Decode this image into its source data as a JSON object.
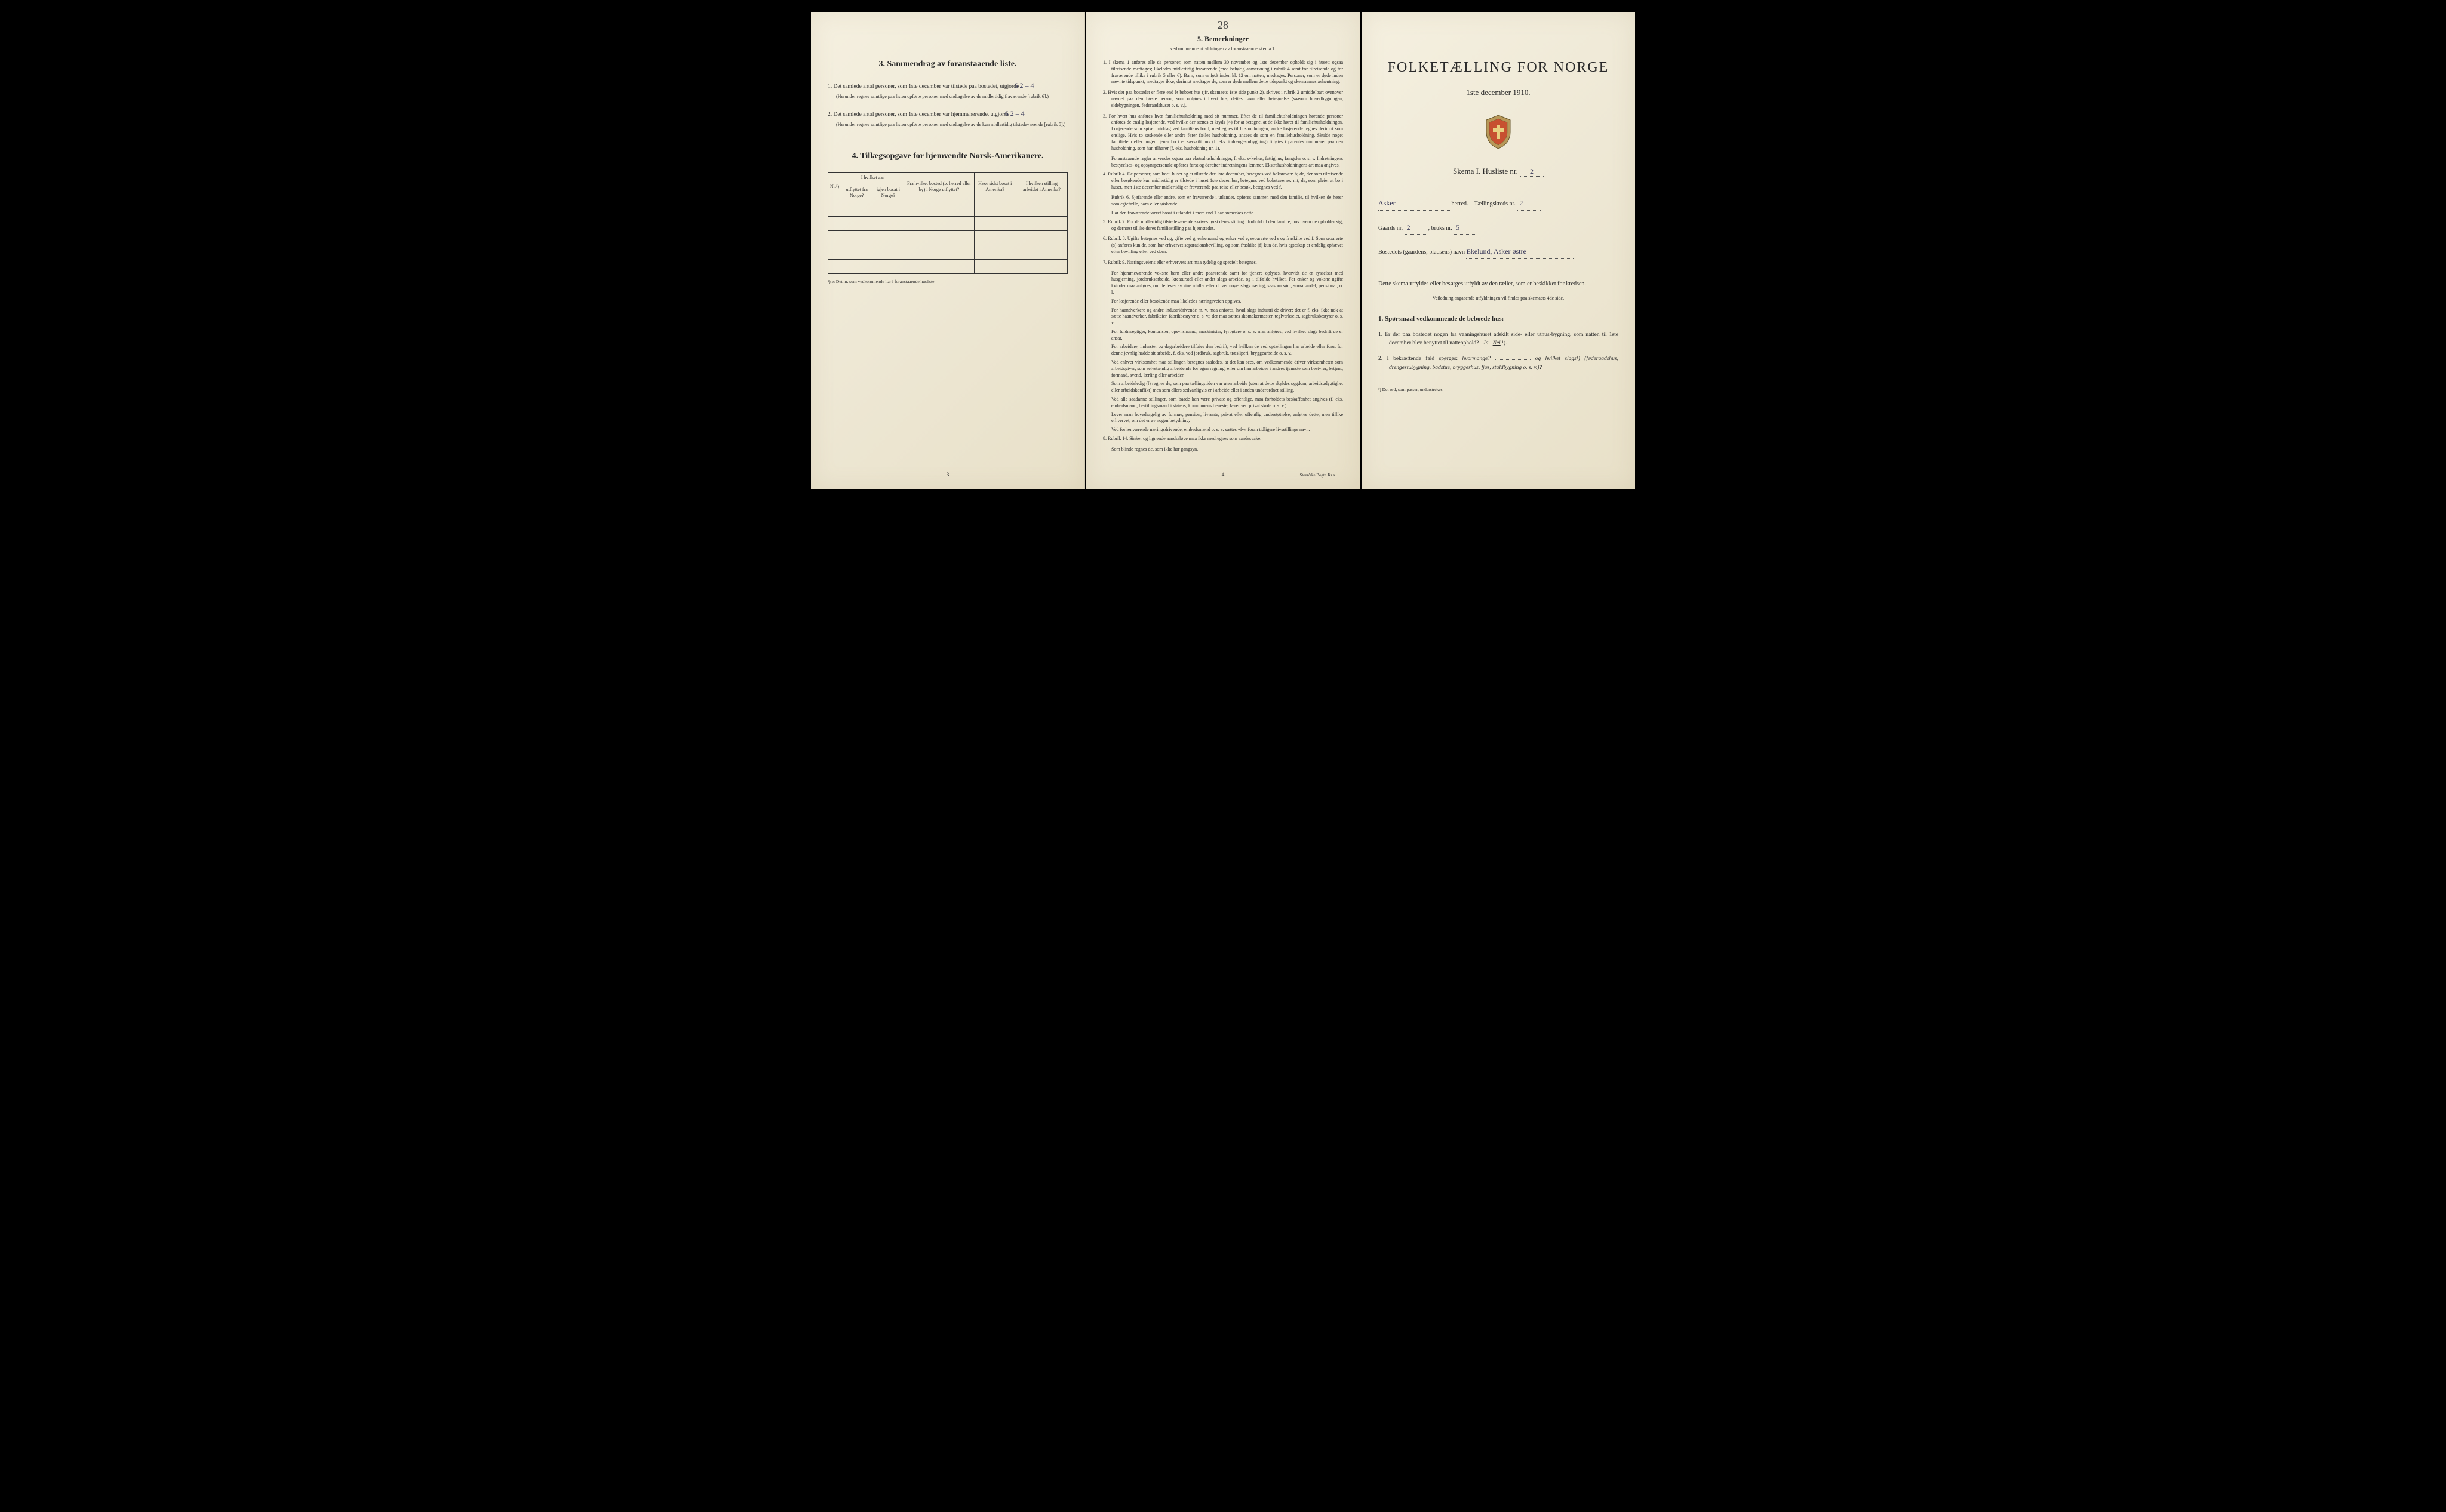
{
  "handwritten_page_marker": "28",
  "page_left": {
    "section3": {
      "title": "3. Sammendrag av foranstaaende liste.",
      "item1_prefix": "1.",
      "item1_text_a": "Det samlede antal personer, som 1ste december var tilstede paa bostedet, utgjorde",
      "item1_value": "6   2 – 4",
      "item1_fine": "(Herunder regnes samtlige paa listen opførte personer med undtagelse av de midlertidig fraværende [rubrik 6].)",
      "item2_prefix": "2.",
      "item2_text_a": "Det samlede antal personer, som 1ste december var hjemmehørende, utgjorde",
      "item2_value": "6   2 – 4",
      "item2_fine": "(Herunder regnes samtlige paa listen opførte personer med undtagelse av de kun midlertidig tilstedeværende [rubrik 5].)"
    },
    "section4": {
      "title": "4. Tillægsopgave for hjemvendte Norsk-Amerikanere.",
      "headers": {
        "col_nr": "Nr.¹)",
        "col_aar_group": "I hvilket aar",
        "col_utflyttet": "utflyttet fra Norge?",
        "col_igjen": "igjen bosat i Norge?",
        "col_fra": "Fra hvilket bosted (ɔ: herred eller by) i Norge utflyttet?",
        "col_hvor": "Hvor sidst bosat i Amerika?",
        "col_stilling": "I hvilken stilling arbeidet i Amerika?"
      },
      "footnote": "¹) ɔ: Det nr. som vedkommende har i foranstaaende husliste."
    },
    "page_number": "3"
  },
  "page_middle": {
    "section5": {
      "title": "5. Bemerkninger",
      "subtitle": "vedkommende utfyldningen av foranstaaende skema 1.",
      "items": [
        {
          "n": "1.",
          "text": "I skema 1 anføres alle de personer, som natten mellem 30 november og 1ste december opholdt sig i huset; ogsaa tilreisende medtages; likeledes midlertidig fraværende (med behørig anmerkning i rubrik 4 samt for tilreisende og for fraværende tillike i rubrik 5 eller 6). Barn, som er født inden kl. 12 om natten, medtages. Personer, som er døde inden nævnte tidspunkt, medtages ikke; derimot medtages de, som er døde mellem dette tidspunkt og skemaernes avhentning."
        },
        {
          "n": "2.",
          "text": "Hvis der paa bostedet er flere end êt beboet hus (jfr. skemaets 1ste side punkt 2), skrives i rubrik 2 umiddelbart ovenover navnet paa den første person, som opføres i hvert hus, dettes navn eller betegnelse (saasom hovedbygningen, sidebygningen, føderaadshuset o. s. v.)."
        },
        {
          "n": "3.",
          "text": "For hvert hus anføres hver familiehusholdning med sit nummer. Efter de til familiehusholdningen hørende personer anføres de enslig losjerende, ved hvilke der sættes et kryds (×) for at betegne, at de ikke hører til familiehusholdningen. Losjerende som spiser middag ved familiens bord, medregnes til husholdningen; andre losjerende regnes derimot som enslige. Hvis to søskende eller andre fører fælles husholdning, ansees de som en familiehusholdning. Skulde noget familielem eller nogen tjener bo i et særskilt hus (f. eks. i drengestubygning) tilføies i parentes nummeret paa den husholdning, som han tilhører (f. eks. husholdning nr. 1)."
        },
        {
          "n": "",
          "text": "Foranstaaende regler anvendes ogsaa paa ekstrahusholdninger, f. eks. sykehus, fattighus, fængsler o. s. v. Indretningens bestyrelses- og opsynspersonale opføres først og derefter indretningens lemmer. Ekstrahusholdningens art maa angives.",
          "sub": true
        },
        {
          "n": "4.",
          "text": "Rubrik 4. De personer, som bor i huset og er tilstede der 1ste december, betegnes ved bokstaven: b; de, der som tilreisende eller besøkende kun midlertidig er tilstede i huset 1ste december, betegnes ved bokstaverne: mt; de, som pleier at bo i huset, men 1ste december midlertidig er fraværende paa reise eller besøk, betegnes ved f."
        },
        {
          "n": "",
          "text": "Rubrik 6. Sjøfarende eller andre, som er fraværende i utlandet, opføres sammen med den familie, til hvilken de hører som egtefælle, barn eller søskende.",
          "sub": true
        },
        {
          "n": "",
          "text": "Har den fraværende været bosat i utlandet i mere end 1 aar anmerkes dette.",
          "sub": true
        },
        {
          "n": "5.",
          "text": "Rubrik 7. For de midlertidig tilstedeværende skrives først deres stilling i forhold til den familie, hos hvem de opholder sig, og dernæst tillike deres familiestilling paa hjemstedet."
        },
        {
          "n": "6.",
          "text": "Rubrik 8. Ugifte betegnes ved ug, gifte ved g, enkemænd og enker ved e, separerte ved s og fraskilte ved f. Som separerte (s) anføres kun de, som har erhvervet separationsbevilling, og som fraskilte (f) kun de, hvis egteskap er endelig ophævet efter bevilling eller ved dom."
        },
        {
          "n": "7.",
          "text": "Rubrik 9. Næringsveiens eller erhvervets art maa tydelig og specielt betegnes."
        },
        {
          "n": "",
          "text": "For hjemmeværende voksne barn eller andre paarørende samt for tjenere oplyses, hvorvidt de er sysselsat med husgjerning, jordbruksarbeide, kreaturstel eller andet slags arbeide, og i tilfælde hvilket. For enker og voksne ugifte kvinder maa anføres, om de lever av sine midler eller driver nogenslags næring, saasom søm, smaahandel, pensionat, o. l.",
          "sub": true
        },
        {
          "n": "",
          "text": "For losjerende eller besøkende maa likeledes næringsveien opgives.",
          "sub": true
        },
        {
          "n": "",
          "text": "For haandverkere og andre industridrivende m. v. maa anføres, hvad slags industri de driver; det er f. eks. ikke nok at sætte haandverker, fabrikeier, fabrikbestyrer o. s. v.; der maa sættes skomakermester, teglverkseier, sagbruksbestyrer o. s. v.",
          "sub": true
        },
        {
          "n": "",
          "text": "For fuldmægtiger, kontorister, opsynsmænd, maskinister, fyrbøtere o. s. v. maa anføres, ved hvilket slags bedrift de er ansat.",
          "sub": true
        },
        {
          "n": "",
          "text": "For arbeidere, inderster og dagarbeidere tilføies den bedrift, ved hvilken de ved optællingen har arbeide eller forut for denne jevnlig hadde sit arbeide, f. eks. ved jordbruk, sagbruk, træsliperi, bryggearbeide o. s. v.",
          "sub": true
        },
        {
          "n": "",
          "text": "Ved enhver virksomhet maa stillingen betegnes saaledes, at det kan sees, om vedkommende driver virksomheten som arbeidsgiver, som selvstændig arbeidende for egen regning, eller om han arbeider i andres tjeneste som bestyrer, betjent, formand, svend, lærling eller arbeider.",
          "sub": true
        },
        {
          "n": "",
          "text": "Som arbeidsledig (l) regnes de, som paa tællingstiden var uten arbeide (uten at dette skyldes sygdom, arbeidsudygtighet eller arbeidskonflikt) men som ellers sedvanligvis er i arbeide eller i anden underordnet stilling.",
          "sub": true
        },
        {
          "n": "",
          "text": "Ved alle saadanne stillinger, som baade kan være private og offentlige, maa forholdets beskaffenhet angives (f. eks. embedsmand, bestillingsmand i statens, kommunens tjeneste, lærer ved privat skole o. s. v.).",
          "sub": true
        },
        {
          "n": "",
          "text": "Lever man hovedsagelig av formue, pension, livrente, privat eller offentlig understøttelse, anføres dette, men tillike erhvervet, om det er av nogen betydning.",
          "sub": true
        },
        {
          "n": "",
          "text": "Ved forhenværende næringsdrivende, embedsmænd o. s. v. sættes «fv» foran tidligere livsstillings navn.",
          "sub": true
        },
        {
          "n": "8.",
          "text": "Rubrik 14. Sinker og lignende aandssløve maa ikke medregnes som aandssvake."
        },
        {
          "n": "",
          "text": "Som blinde regnes de, som ikke har gangsyn.",
          "sub": true
        }
      ]
    },
    "page_number": "4",
    "printer": "Steen'ske Bogtr. Kr.a."
  },
  "page_right": {
    "main_title": "FOLKETÆLLING FOR NORGE",
    "date": "1ste december 1910.",
    "schema_label": "Skema I.   Husliste nr.",
    "schema_nr": "2",
    "herred_value": "Asker",
    "herred_label": "herred.",
    "kreds_label": "Tællingskreds nr.",
    "kreds_nr": "2",
    "gaards_label": "Gaards nr.",
    "gaards_nr": "2",
    "bruks_label": "bruks nr.",
    "bruks_nr": "5",
    "bosted_label": "Bostedets (gaardens, pladsens) navn",
    "bosted_value": "Ekelund, Asker østre",
    "instruction_main": "Dette skema utfyldes eller besørges utfyldt av den tæller, som er beskikket for kredsen.",
    "instruction_sub": "Veiledning angaaende utfyldningen vil findes paa skemaets 4de side.",
    "q_header": "1. Spørsmaal vedkommende de beboede hus:",
    "q1_n": "1.",
    "q1_text": "Er der paa bostedet nogen fra vaaningshuset adskilt side- eller uthus-bygning, som natten til 1ste december blev benyttet til natteophold?",
    "q1_ja": "Ja",
    "q1_nei": "Nei",
    "q1_sup": "¹).",
    "q2_n": "2.",
    "q2_text_a": "I bekræftende fald spørges:",
    "q2_hvormange": "hvormange?",
    "q2_text_b": "og hvilket slags¹) (føderaadshus, drengestubygning, badstue, bryggerhus, fjøs, staldbygning o. s. v.)?",
    "footnote": "¹) Det ord, som passer, understrekes."
  },
  "colors": {
    "paper": "#f0ead6",
    "text": "#2a2a2a",
    "handwriting": "#3a3a5a"
  }
}
